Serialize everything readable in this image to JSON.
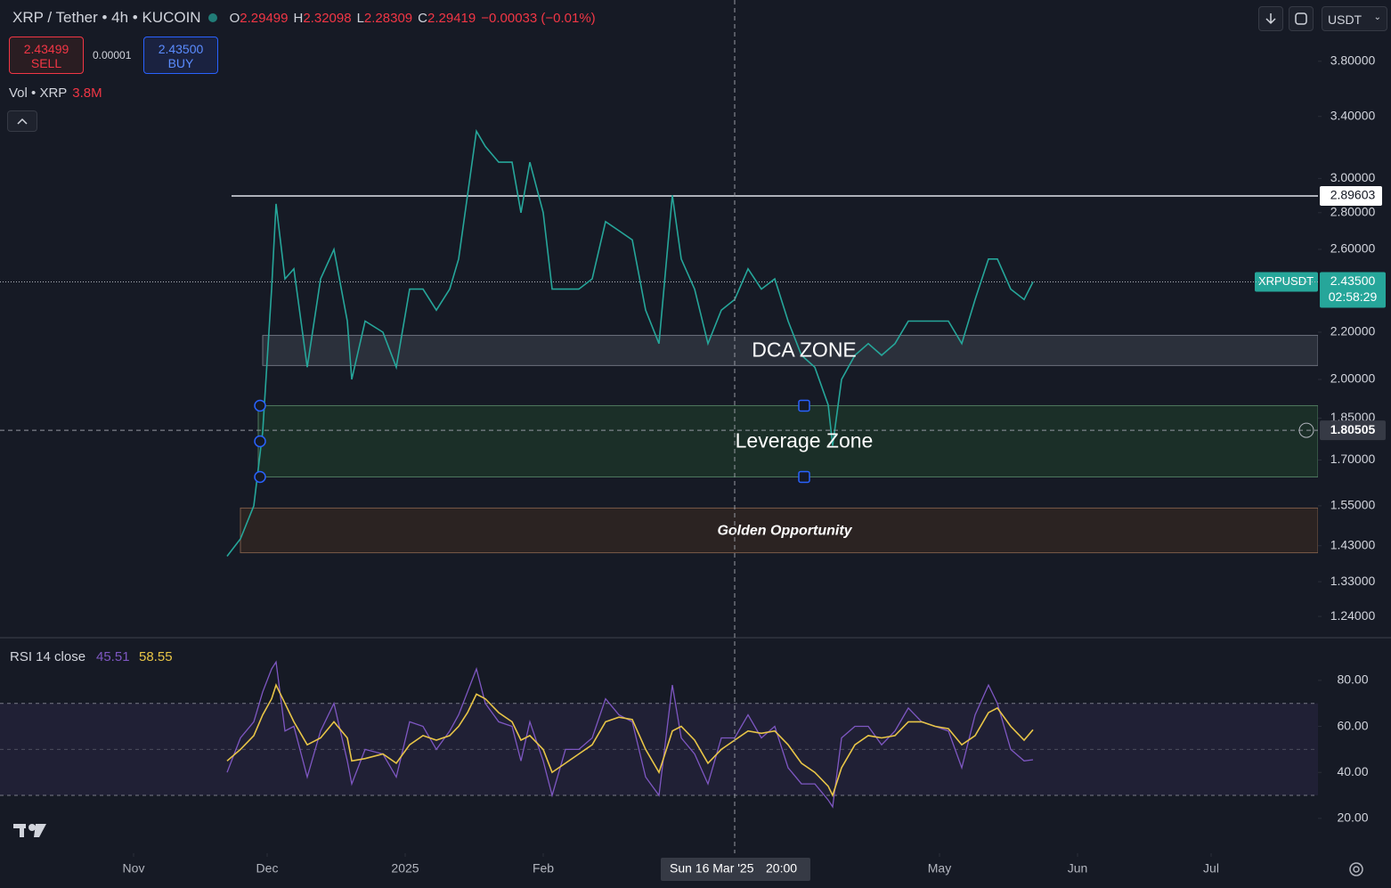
{
  "header": {
    "title": "XRP / Tether • 4h • KUCOIN",
    "ohlc": [
      {
        "key": "O",
        "value": "2.29499"
      },
      {
        "key": "H",
        "value": "2.32098"
      },
      {
        "key": "L",
        "value": "2.28309"
      },
      {
        "key": "C",
        "value": "2.29419"
      }
    ],
    "change": "−0.00033 (−0.01%)"
  },
  "trade": {
    "sell_price": "2.43499",
    "sell_label": "SELL",
    "spread": "0.00001",
    "buy_price": "2.43500",
    "buy_label": "BUY"
  },
  "volume_legend": {
    "label": "Vol • XRP",
    "value": "3.8M"
  },
  "currency": "USDT",
  "chart_data": [
    {
      "type": "line",
      "log_scale": true,
      "xlim": [
        "2024-10-02",
        "2025-07-25"
      ],
      "ylim": [
        1.19,
        4.3
      ],
      "xticks": [
        {
          "value": "2024-11-01",
          "label": "Nov"
        },
        {
          "value": "2024-12-01",
          "label": "Dec"
        },
        {
          "value": "2025-01-01",
          "label": "2025"
        },
        {
          "value": "2025-02-01",
          "label": "Feb"
        },
        {
          "value": "2025-05-01",
          "label": "May"
        },
        {
          "value": "2025-06-01",
          "label": "Jun"
        },
        {
          "value": "2025-07-01",
          "label": "Jul"
        }
      ],
      "yticks": [
        {
          "value": 3.8,
          "label": "3.80000"
        },
        {
          "value": 3.4,
          "label": "3.40000"
        },
        {
          "value": 3.0,
          "label": "3.00000"
        },
        {
          "value": 2.8,
          "label": "2.80000"
        },
        {
          "value": 2.6,
          "label": "2.60000"
        },
        {
          "value": 2.2,
          "label": "2.20000"
        },
        {
          "value": 2.0,
          "label": "2.00000"
        },
        {
          "value": 1.85,
          "label": "1.85000"
        },
        {
          "value": 1.7,
          "label": "1.70000"
        },
        {
          "value": 1.55,
          "label": "1.55000"
        },
        {
          "value": 1.43,
          "label": "1.43000"
        },
        {
          "value": 1.33,
          "label": "1.33000"
        },
        {
          "value": 1.24,
          "label": "1.24000"
        }
      ],
      "x": [
        "2024-11-22",
        "2024-11-25",
        "2024-11-28",
        "2024-11-30",
        "2024-12-02",
        "2024-12-03",
        "2024-12-05",
        "2024-12-07",
        "2024-12-10",
        "2024-12-13",
        "2024-12-16",
        "2024-12-19",
        "2024-12-20",
        "2024-12-23",
        "2024-12-27",
        "2024-12-30",
        "2025-01-02",
        "2025-01-05",
        "2025-01-08",
        "2025-01-11",
        "2025-01-13",
        "2025-01-15",
        "2025-01-17",
        "2025-01-19",
        "2025-01-22",
        "2025-01-25",
        "2025-01-27",
        "2025-01-29",
        "2025-02-01",
        "2025-02-03",
        "2025-02-06",
        "2025-02-09",
        "2025-02-12",
        "2025-02-15",
        "2025-02-18",
        "2025-02-21",
        "2025-02-24",
        "2025-02-27",
        "2025-03-02",
        "2025-03-04",
        "2025-03-07",
        "2025-03-10",
        "2025-03-13",
        "2025-03-16",
        "2025-03-19",
        "2025-03-22",
        "2025-03-25",
        "2025-03-28",
        "2025-03-31",
        "2025-04-03",
        "2025-04-06",
        "2025-04-07",
        "2025-04-09",
        "2025-04-12",
        "2025-04-15",
        "2025-04-18",
        "2025-04-21",
        "2025-04-24",
        "2025-04-27",
        "2025-04-30",
        "2025-05-03",
        "2025-05-06",
        "2025-05-09",
        "2025-05-12",
        "2025-05-14",
        "2025-05-17",
        "2025-05-20",
        "2025-05-22"
      ],
      "series": [
        {
          "name": "XRPUSDT",
          "color": "#26a69a",
          "values": [
            1.4,
            1.45,
            1.55,
            1.8,
            2.4,
            2.85,
            2.45,
            2.5,
            2.05,
            2.45,
            2.6,
            2.25,
            2.0,
            2.25,
            2.2,
            2.05,
            2.4,
            2.4,
            2.3,
            2.4,
            2.55,
            2.9,
            3.3,
            3.2,
            3.1,
            3.1,
            2.8,
            3.1,
            2.8,
            2.4,
            2.4,
            2.4,
            2.45,
            2.75,
            2.7,
            2.65,
            2.3,
            2.15,
            2.9,
            2.55,
            2.4,
            2.15,
            2.3,
            2.35,
            2.5,
            2.4,
            2.45,
            2.25,
            2.1,
            2.05,
            1.9,
            1.75,
            2.0,
            2.1,
            2.15,
            2.1,
            2.15,
            2.25,
            2.25,
            2.25,
            2.25,
            2.15,
            2.35,
            2.55,
            2.55,
            2.4,
            2.35,
            2.435
          ]
        }
      ],
      "levels": [
        {
          "value": 2.89603,
          "label": "2.89603",
          "start": "2024-11-23"
        }
      ],
      "last_price": {
        "value": 2.435,
        "label": "2.43500",
        "countdown": "02:58:29"
      },
      "zones": [
        {
          "label": "DCA ZONE",
          "from": 2.057,
          "to": 2.186,
          "start": "2024-11-30",
          "color": "#3a3f4b",
          "border": "#6b707c"
        },
        {
          "label": "Leverage Zone",
          "from": 1.643,
          "to": 1.897,
          "start": "2024-11-29",
          "color": "#1f3d2c",
          "border": "#4f7a5f"
        },
        {
          "label": "Golden Opportunity",
          "from": 1.41,
          "to": 1.543,
          "start": "2024-11-25",
          "color": "#3b2a22",
          "border": "#7a5a48"
        }
      ],
      "crosshair": {
        "x": "2025-03-16",
        "date_label": "Sun 16 Mar '25",
        "time_label": "20:00",
        "value": 1.80505,
        "label": "1.80505"
      }
    },
    {
      "type": "line",
      "title": "RSI 14 close",
      "ylim": [
        6,
        97
      ],
      "yticks": [
        {
          "value": 80,
          "label": "80.00"
        },
        {
          "value": 60,
          "label": "60.00"
        },
        {
          "value": 40,
          "label": "40.00"
        },
        {
          "value": 20,
          "label": "20.00"
        }
      ],
      "bands": [
        30,
        70
      ],
      "midline": 50,
      "series": [
        {
          "color": "#7e57c2",
          "values": [
            40,
            55,
            62,
            75,
            85,
            88,
            58,
            60,
            38,
            58,
            70,
            45,
            35,
            50,
            48,
            38,
            62,
            60,
            50,
            58,
            65,
            75,
            85,
            70,
            62,
            60,
            45,
            62,
            45,
            30,
            50,
            50,
            55,
            72,
            65,
            62,
            38,
            30,
            78,
            55,
            48,
            35,
            55,
            55,
            65,
            55,
            60,
            42,
            35,
            35,
            28,
            25,
            55,
            60,
            60,
            52,
            58,
            68,
            62,
            60,
            58,
            42,
            65,
            78,
            70,
            50,
            45,
            45.51
          ]
        },
        {
          "color": "#e8c547",
          "values": [
            45,
            50,
            56,
            65,
            72,
            78,
            70,
            62,
            52,
            55,
            62,
            55,
            45,
            46,
            48,
            44,
            52,
            56,
            54,
            56,
            60,
            66,
            74,
            72,
            66,
            62,
            54,
            56,
            50,
            40,
            44,
            48,
            52,
            62,
            64,
            63,
            50,
            40,
            58,
            60,
            54,
            44,
            50,
            54,
            58,
            57,
            58,
            52,
            44,
            40,
            34,
            30,
            42,
            52,
            56,
            55,
            56,
            62,
            62,
            60,
            59,
            52,
            56,
            66,
            68,
            60,
            54,
            58.55
          ]
        }
      ]
    }
  ]
}
